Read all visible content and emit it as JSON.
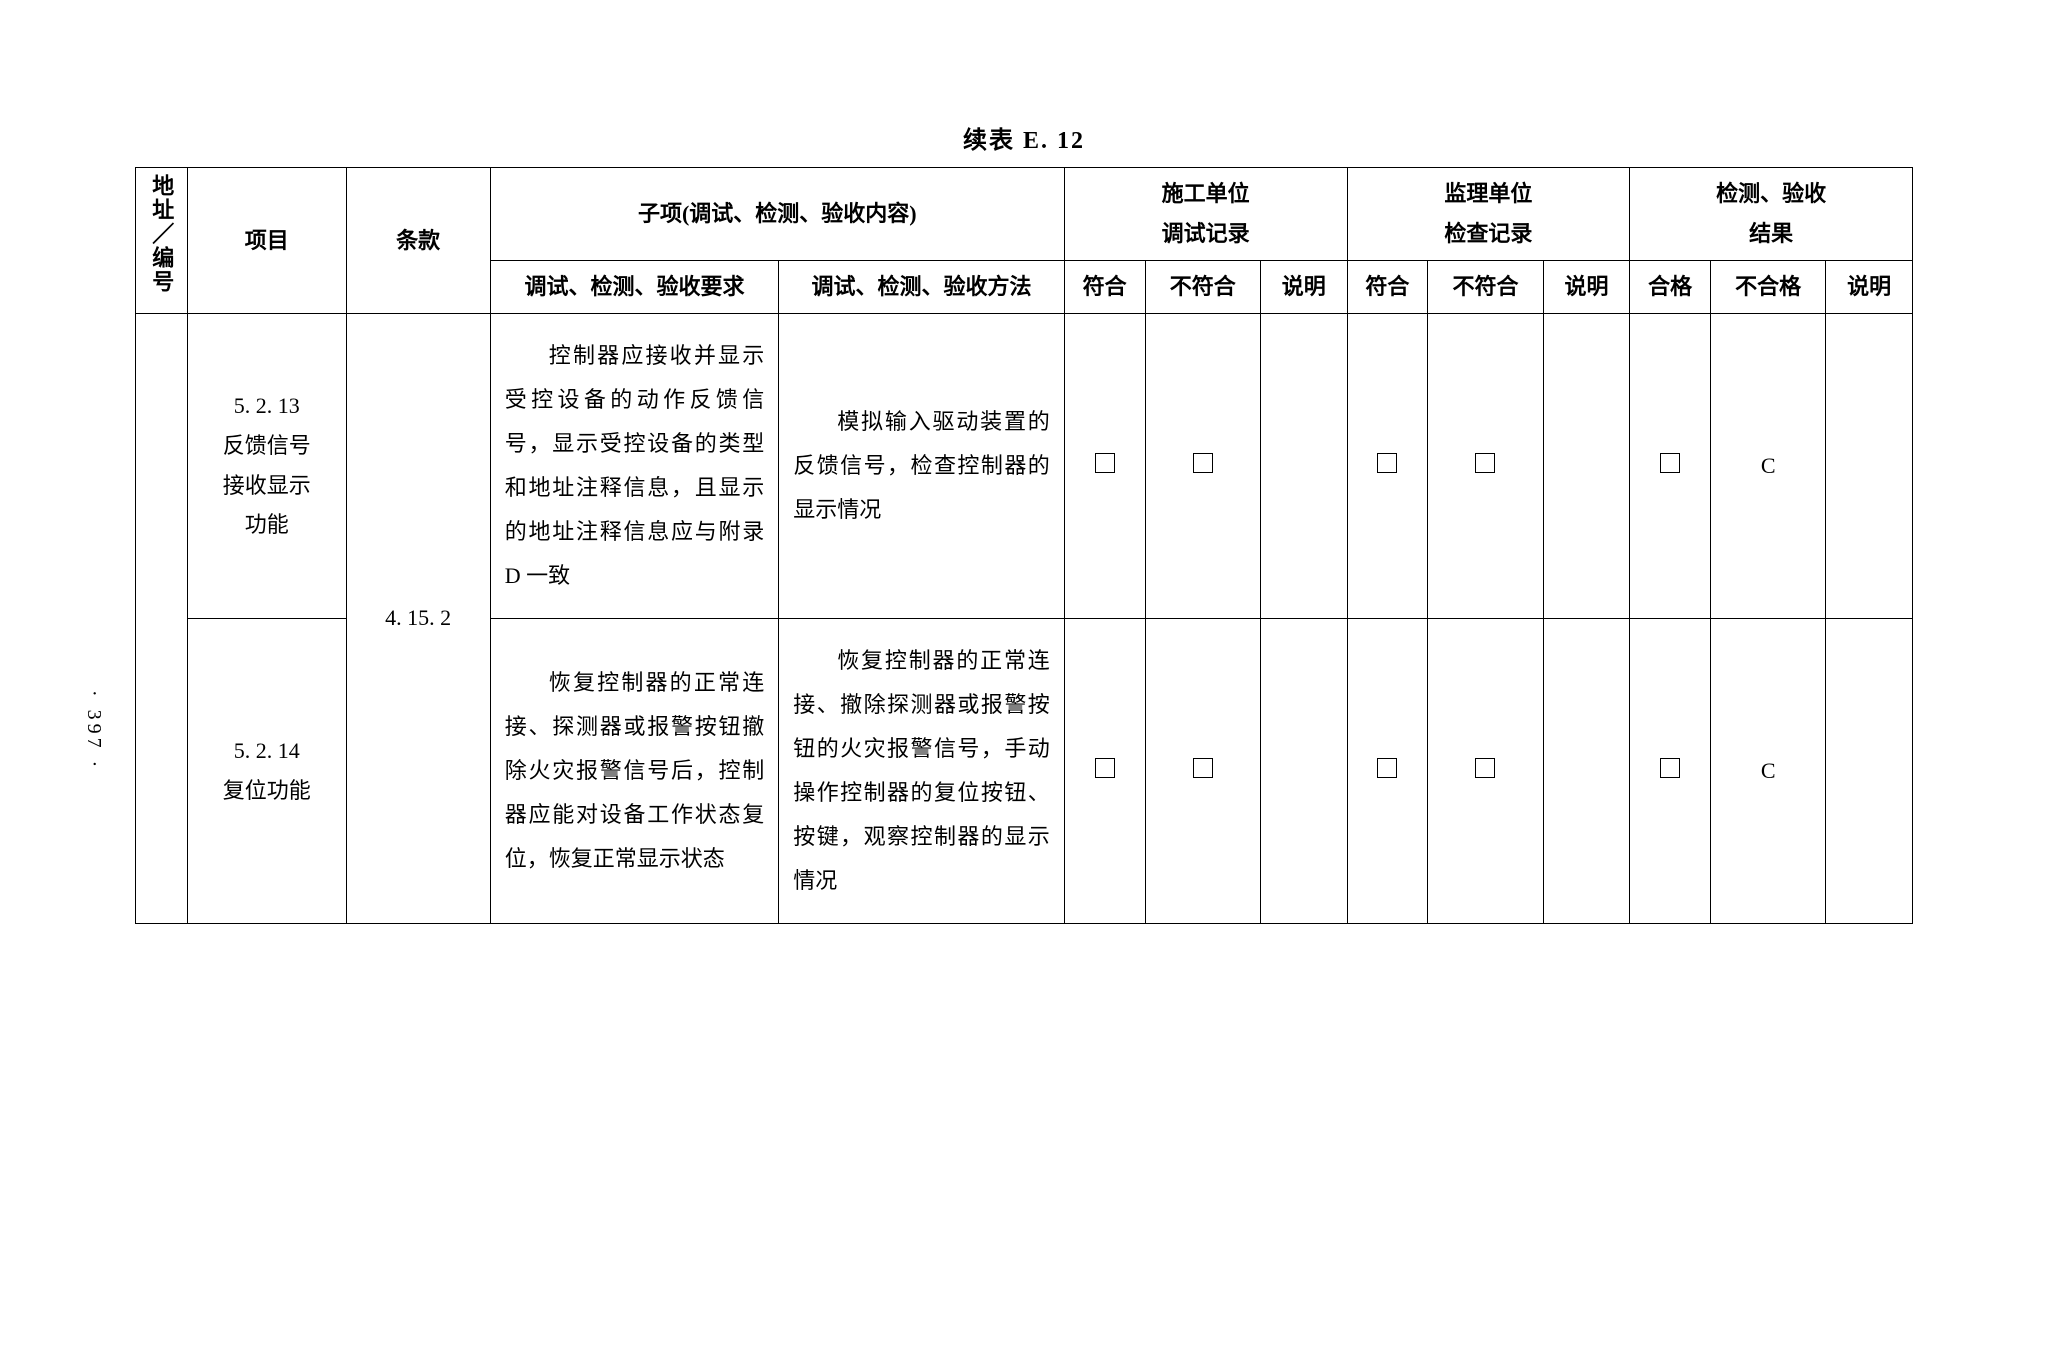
{
  "title": "续表 E. 12",
  "page_number": "· 397 ·",
  "headers": {
    "address": "地址／编号",
    "item": "项目",
    "clause": "条款",
    "subitem_span": "子项(调试、检测、验收内容)",
    "construction_span": "施工单位调试记录",
    "supervision_span": "监理单位检查记录",
    "result_span": "检测、验收结果",
    "requirement": "调试、检测、验收要求",
    "method": "调试、检测、验收方法",
    "conform": "符合",
    "nonconform": "不符合",
    "explain": "说明",
    "conform2": "符合",
    "nonconform2": "不符合",
    "explain2": "说明",
    "pass": "合格",
    "fail": "不合格",
    "explain3": "说明"
  },
  "clause_value": "4. 15. 2",
  "rows": [
    {
      "item_no": "5. 2. 13",
      "item_name": "反馈信号接收显示功能",
      "requirement": "控制器应接收并显示受控设备的动作反馈信号，显示受控设备的类型和地址注释信息，且显示的地址注释信息应与附录 D 一致",
      "method": "模拟输入驱动装置的反馈信号，检查控制器的显示情况",
      "fail_mark": "C"
    },
    {
      "item_no": "5. 2. 14",
      "item_name": "复位功能",
      "requirement": "恢复控制器的正常连接、探测器或报警按钮撤除火灾报警信号后，控制器应能对设备工作状态复位，恢复正常显示状态",
      "method": "恢复控制器的正常连接、撤除探测器或报警按钮的火灾报警信号，手动操作控制器的复位按钮、按键，观察控制器的显示情况",
      "fail_mark": "C"
    }
  ]
}
